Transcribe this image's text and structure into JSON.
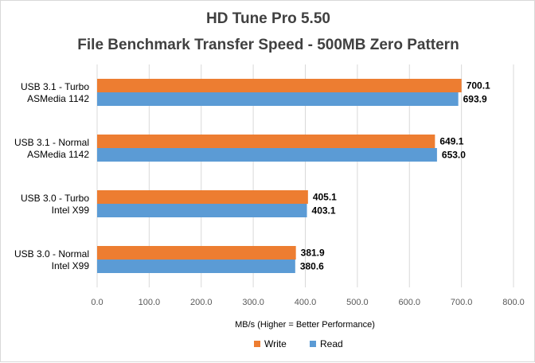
{
  "chart_data": {
    "type": "bar",
    "orientation": "horizontal",
    "title": "HD Tune Pro 5.50",
    "subtitle": "File Benchmark Transfer Speed - 500MB Zero Pattern",
    "categories": [
      [
        "USB 3.1 - Turbo",
        "ASMedia 1142"
      ],
      [
        "USB 3.1 - Normal",
        "ASMedia 1142"
      ],
      [
        "USB 3.0 - Turbo",
        "Intel X99"
      ],
      [
        "USB 3.0 - Normal",
        "Intel X99"
      ]
    ],
    "series": [
      {
        "name": "Write",
        "color": "#ED7D31",
        "values": [
          700.1,
          649.1,
          405.1,
          381.9
        ],
        "labels": [
          "700.1",
          "649.1",
          "405.1",
          "381.9"
        ]
      },
      {
        "name": "Read",
        "color": "#5B9BD5",
        "values": [
          693.9,
          653.0,
          403.1,
          380.6
        ],
        "labels": [
          "693.9",
          "653.0",
          "403.1",
          "380.6"
        ]
      }
    ],
    "xlabel": "MB/s (Higher = Better Performance)",
    "ylabel": "",
    "xlim": [
      0,
      800
    ],
    "xticks": [
      "0.0",
      "100.0",
      "200.0",
      "300.0",
      "400.0",
      "500.0",
      "600.0",
      "700.0",
      "800.0"
    ],
    "grid": true,
    "gridColor": "#d9d9d9",
    "legend": "bottom-center"
  }
}
